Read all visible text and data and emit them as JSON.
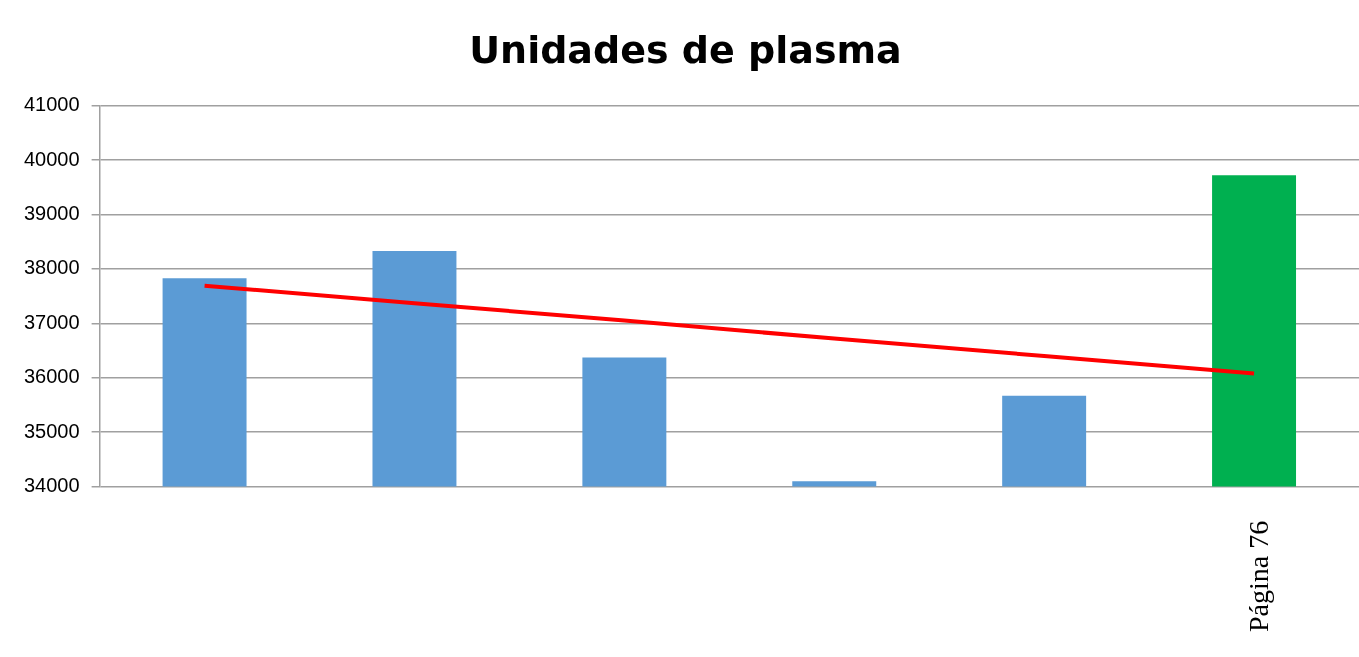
{
  "chart_data": {
    "type": "bar",
    "title": "Unidades de plasma",
    "categories": [
      null,
      null,
      null,
      null,
      null,
      null
    ],
    "series": [
      {
        "colors": [
          "#5b9bd5",
          "#5b9bd5",
          "#5b9bd5",
          "#5b9bd5",
          "#5b9bd5",
          "#00b050"
        ],
        "values": [
          37830,
          38330,
          36370,
          34100,
          35670,
          39720
        ]
      },
      {
        "type": "line",
        "color": "#ff0000",
        "values": [
          37690,
          37370,
          37050,
          36720,
          36400,
          36080
        ]
      }
    ],
    "ylim": [
      34000,
      41000
    ],
    "yticks": [
      34000,
      35000,
      36000,
      37000,
      38000,
      39000,
      40000,
      41000
    ],
    "grid": "y",
    "legend": false,
    "marker": "none",
    "annotations": [
      "Página 76"
    ]
  }
}
